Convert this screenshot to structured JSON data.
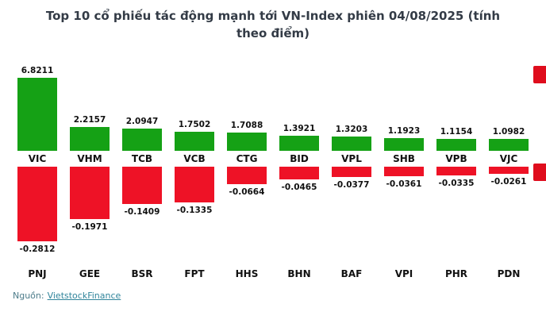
{
  "title": "Top 10 cổ phiếu tác động mạnh tới VN-Index phiên 04/08/2025 (tính theo điểm)",
  "source": {
    "prefix": "Nguồn:",
    "link_text": "VietstockFinance"
  },
  "colors": {
    "positive": "#15a115",
    "negative": "#ee1226",
    "title_text": "#333b46",
    "label_text": "#111111",
    "link": "#31859b",
    "edge_marker": "#df0d1d"
  },
  "chart_data": {
    "type": "bar",
    "title": "Top 10 cổ phiếu tác động mạnh tới VN-Index phiên 04/08/2025 (tính theo điểm)",
    "orientation": "vertical-diverging",
    "grid": false,
    "legend": "none",
    "value_label_decimals": 4,
    "series": [
      {
        "name": "positive-impact",
        "color": "#15a115",
        "categories": [
          "VIC",
          "VHM",
          "TCB",
          "VCB",
          "CTG",
          "BID",
          "VPL",
          "SHB",
          "VPB",
          "VJC"
        ],
        "values": [
          6.8211,
          2.2157,
          2.0947,
          1.7502,
          1.7088,
          1.3921,
          1.3203,
          1.1923,
          1.1154,
          1.0982
        ]
      },
      {
        "name": "negative-impact",
        "color": "#ee1226",
        "categories": [
          "PNJ",
          "GEE",
          "BSR",
          "FPT",
          "HHS",
          "BHN",
          "BAF",
          "VPI",
          "PHR",
          "PDN"
        ],
        "values": [
          -0.2812,
          -0.1971,
          -0.1409,
          -0.1335,
          -0.0664,
          -0.0465,
          -0.0377,
          -0.0361,
          -0.0335,
          -0.0261
        ]
      }
    ]
  }
}
